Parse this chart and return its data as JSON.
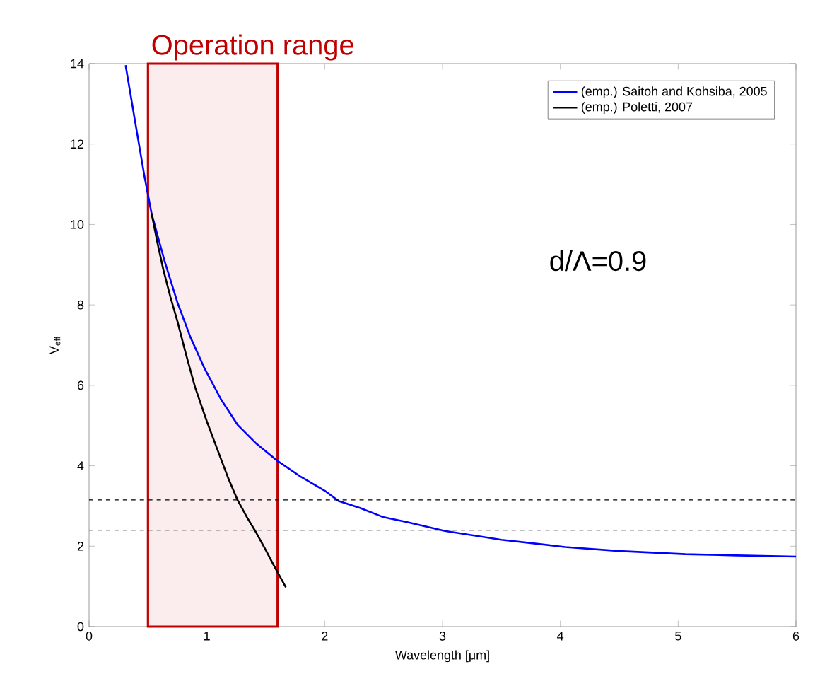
{
  "chart_data": {
    "type": "line",
    "xlabel": "Wavelength [μm]",
    "ylabel": "V$_{eff}$",
    "xlim": [
      0,
      6
    ],
    "ylim": [
      0,
      14
    ],
    "xticks": [
      0,
      1,
      2,
      3,
      4,
      5,
      6
    ],
    "yticks": [
      0,
      2,
      4,
      6,
      8,
      10,
      12,
      14
    ],
    "grid": false,
    "legend": "top right",
    "marker": "none",
    "line_style": "solid",
    "series": [
      {
        "name": "(emp.) Saitoh and Kohsiba, 2005",
        "color": "#0000ff",
        "x": [
          0.31,
          0.4,
          0.47,
          0.53,
          0.64,
          0.75,
          0.86,
          0.98,
          1.12,
          1.26,
          1.42,
          1.59,
          1.8,
          2.0,
          2.12,
          2.3,
          2.5,
          2.7,
          3.02,
          3.5,
          4.04,
          4.5,
          5.06,
          5.5,
          6.0
        ],
        "values": [
          13.96,
          12.4,
          11.2,
          10.28,
          9.1,
          8.06,
          7.2,
          6.42,
          5.65,
          5.02,
          4.55,
          4.14,
          3.72,
          3.38,
          3.12,
          2.95,
          2.72,
          2.6,
          2.38,
          2.16,
          1.98,
          1.88,
          1.8,
          1.77,
          1.74
        ]
      },
      {
        "name": "(emp.) Poletti, 2007",
        "color": "#000000",
        "x": [
          0.53,
          0.58,
          0.63,
          0.69,
          0.75,
          0.82,
          0.9,
          1.0,
          1.1,
          1.18,
          1.26,
          1.34,
          1.42,
          1.5,
          1.57,
          1.67
        ],
        "values": [
          10.28,
          9.55,
          8.88,
          8.2,
          7.59,
          6.8,
          5.95,
          5.1,
          4.32,
          3.7,
          3.15,
          2.72,
          2.33,
          1.9,
          1.51,
          0.98
        ]
      }
    ],
    "ref_lines": [
      {
        "axis": "y",
        "value": 3.15,
        "color": "#000000",
        "line_style": "dashed"
      },
      {
        "axis": "y",
        "value": 2.4,
        "color": "#000000",
        "line_style": "dashed"
      }
    ],
    "bands": [
      {
        "axis": "x",
        "from": 0.5,
        "to": 1.6,
        "label": "Operation range",
        "color": "#c00000"
      }
    ],
    "annotations": [
      "d/Λ=0.9"
    ]
  }
}
